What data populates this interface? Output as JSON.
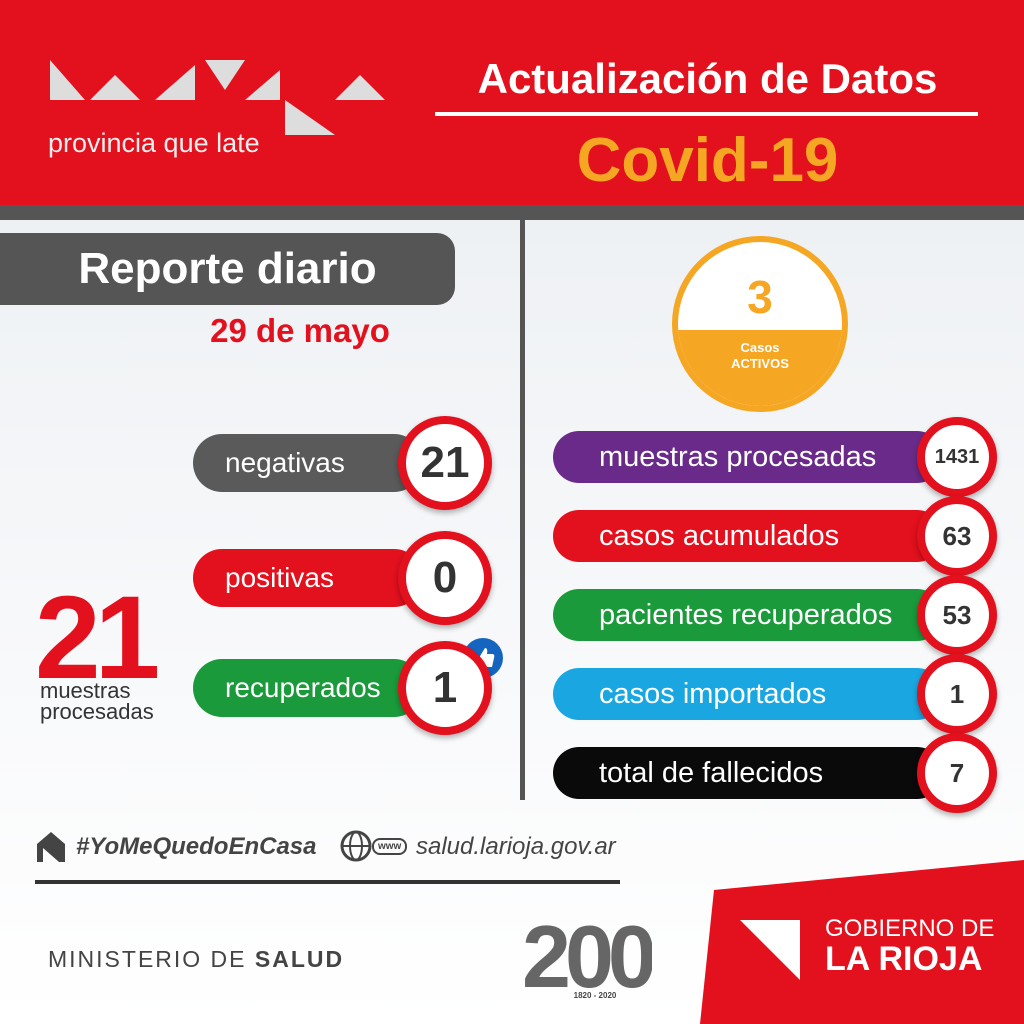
{
  "header": {
    "logo_tagline": "provincia que late",
    "title": "Actualización de Datos",
    "subtitle": "Covid-19"
  },
  "report": {
    "title": "Reporte diario",
    "date": "29 de mayo",
    "total": "21",
    "total_label": "muestras procesadas",
    "items": [
      {
        "label": "negativas",
        "value": "21",
        "color": "#5a5a5a"
      },
      {
        "label": "positivas",
        "value": "0",
        "color": "#e3101d"
      },
      {
        "label": "recuperados",
        "value": "1",
        "color": "#1a9a3a"
      }
    ]
  },
  "summary": {
    "active": {
      "value": "3",
      "label": "Casos",
      "label2": "ACTIVOS"
    },
    "items": [
      {
        "label": "muestras procesadas",
        "value": "1431",
        "color": "#6a2a8a"
      },
      {
        "label": "casos acumulados",
        "value": "63",
        "color": "#e3101d"
      },
      {
        "label": "pacientes recuperados",
        "value": "53",
        "color": "#1a9a3a"
      },
      {
        "label": "casos importados",
        "value": "1",
        "color": "#1aa6e0"
      },
      {
        "label": "total de fallecidos",
        "value": "7",
        "color": "#0a0a0a"
      }
    ]
  },
  "footer": {
    "hashtag": "#YoMeQuedoEnCasa",
    "web_icon": "www",
    "website": "salud.larioja.gov.ar",
    "ministry": "MINISTERIO DE",
    "ministry_bold": "SALUD",
    "anniversary": "1820 - 2020",
    "government": "GOBIERNO DE",
    "government_bold": "LA RIOJA"
  }
}
